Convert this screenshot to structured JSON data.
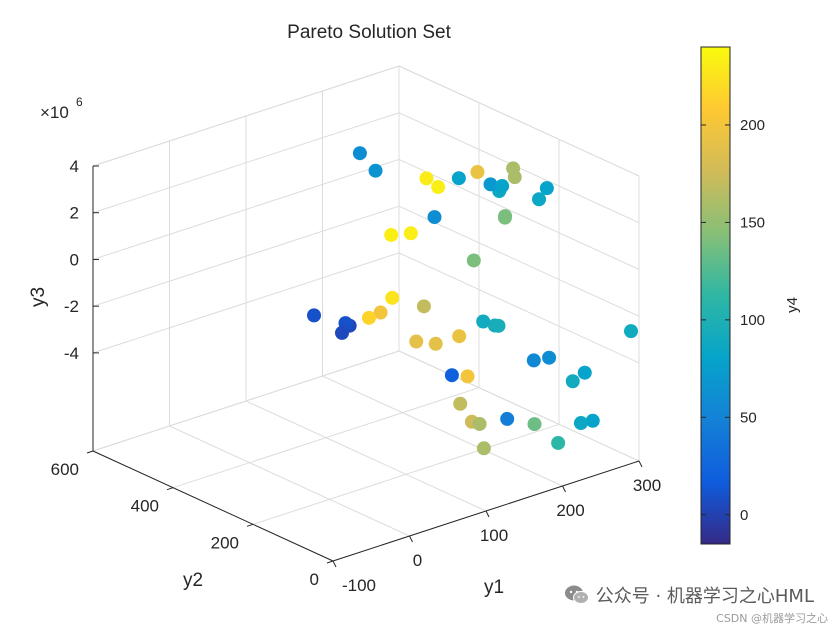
{
  "chart_data": {
    "type": "scatter3d",
    "title": "Pareto Solution Set",
    "xlabel": "y1",
    "ylabel": "y2",
    "zlabel": "y3",
    "z_exponent_label": "×10",
    "z_exponent_power": "6",
    "colorbar_label": "y4",
    "x_ticks": [
      "-100",
      "0",
      "100",
      "200",
      "300"
    ],
    "y_ticks": [
      "0",
      "200",
      "400",
      "600"
    ],
    "z_ticks": [
      "-4",
      "-2",
      "0",
      "2",
      "4"
    ],
    "colorbar_ticks": [
      "0",
      "50",
      "100",
      "150",
      "200"
    ],
    "colorbar_range": [
      -15,
      240
    ],
    "colormap": "parula",
    "grid": true,
    "points": [
      {
        "x": 190,
        "y": 20,
        "z": 4.5,
        "c": 80
      },
      {
        "x": 185,
        "y": 30,
        "z": 4.0,
        "c": 85
      },
      {
        "x": 180,
        "y": 120,
        "z": 3.7,
        "c": 85
      },
      {
        "x": 200,
        "y": 180,
        "z": 3.3,
        "c": 70
      },
      {
        "x": 210,
        "y": 170,
        "z": 3.2,
        "c": 80
      },
      {
        "x": 160,
        "y": 430,
        "z": 3.1,
        "c": 60
      },
      {
        "x": 190,
        "y": 240,
        "z": 3.2,
        "c": 80
      },
      {
        "x": 240,
        "y": 200,
        "z": 3.4,
        "c": 160
      },
      {
        "x": 250,
        "y": 215,
        "z": 2.8,
        "c": 160
      },
      {
        "x": 230,
        "y": 270,
        "z": 2.8,
        "c": 195
      },
      {
        "x": 200,
        "y": 340,
        "z": 2.3,
        "c": 230
      },
      {
        "x": 170,
        "y": 410,
        "z": 2.4,
        "c": 65
      },
      {
        "x": 210,
        "y": 330,
        "z": 1.9,
        "c": 232
      },
      {
        "x": 240,
        "y": 220,
        "z": 1.2,
        "c": 140
      },
      {
        "x": 245,
        "y": 230,
        "z": 1.0,
        "c": 140
      },
      {
        "x": 200,
        "y": 320,
        "z": 0.8,
        "c": 60
      },
      {
        "x": 190,
        "y": 360,
        "z": -0.1,
        "c": 232
      },
      {
        "x": 180,
        "y": 390,
        "z": -0.3,
        "c": 232
      },
      {
        "x": 220,
        "y": 260,
        "z": -0.8,
        "c": 140
      },
      {
        "x": 160,
        "y": 270,
        "z": -2.2,
        "c": 170
      },
      {
        "x": 180,
        "y": 160,
        "z": -2.2,
        "c": 90
      },
      {
        "x": 150,
        "y": 330,
        "z": -2.2,
        "c": 225
      },
      {
        "x": 140,
        "y": 340,
        "z": -2.8,
        "c": 200
      },
      {
        "x": 190,
        "y": 150,
        "z": -2.4,
        "c": 95
      },
      {
        "x": 200,
        "y": 160,
        "z": -2.6,
        "c": 95
      },
      {
        "x": 130,
        "y": 350,
        "z": -3.0,
        "c": 215
      },
      {
        "x": 110,
        "y": 360,
        "z": -3.2,
        "c": 5
      },
      {
        "x": 100,
        "y": 430,
        "z": -3.2,
        "c": 10
      },
      {
        "x": 115,
        "y": 380,
        "z": -3.3,
        "c": 10
      },
      {
        "x": 100,
        "y": 360,
        "z": -3.4,
        "c": 5
      },
      {
        "x": 150,
        "y": 270,
        "z": -3.6,
        "c": 190
      },
      {
        "x": 165,
        "y": 250,
        "z": -3.7,
        "c": 190
      },
      {
        "x": 180,
        "y": 220,
        "z": -3.3,
        "c": 195
      },
      {
        "x": 300,
        "y": 20,
        "z": -2.8,
        "c": 90
      },
      {
        "x": 220,
        "y": 110,
        "z": -3.9,
        "c": 55
      },
      {
        "x": 240,
        "y": 110,
        "z": -4.0,
        "c": 60
      },
      {
        "x": 250,
        "y": 40,
        "z": -4.2,
        "c": 80
      },
      {
        "x": 160,
        "y": 200,
        "z": -4.6,
        "c": 20
      },
      {
        "x": 170,
        "y": 180,
        "z": -4.6,
        "c": 200
      },
      {
        "x": 150,
        "y": 160,
        "z": -5.4,
        "c": 170
      },
      {
        "x": 250,
        "y": 70,
        "z": -4.8,
        "c": 90
      },
      {
        "x": 180,
        "y": 100,
        "z": -5.9,
        "c": 45
      },
      {
        "x": 200,
        "y": 70,
        "z": -6.1,
        "c": 135
      },
      {
        "x": 160,
        "y": 150,
        "z": -6.2,
        "c": 175
      },
      {
        "x": 170,
        "y": 150,
        "z": -6.4,
        "c": 160
      },
      {
        "x": 250,
        "y": 20,
        "z": -6.1,
        "c": 80
      },
      {
        "x": 245,
        "y": 40,
        "z": -6.3,
        "c": 85
      },
      {
        "x": 210,
        "y": 30,
        "z": -6.7,
        "c": 110
      },
      {
        "x": 160,
        "y": 120,
        "z": -7.1,
        "c": 160
      }
    ]
  },
  "watermark": {
    "text": "公众号 · 机器学习之心HML",
    "csdn": "CSDN @机器学习之心",
    "icon": "wechat-icon"
  }
}
